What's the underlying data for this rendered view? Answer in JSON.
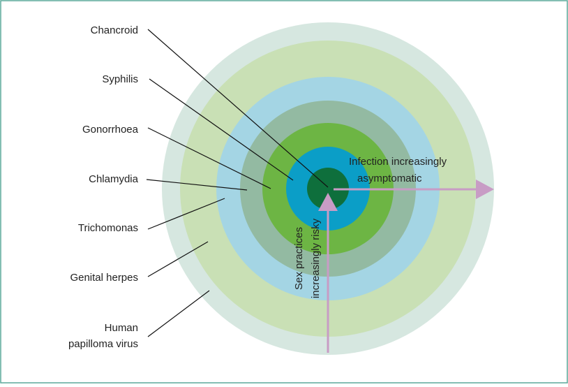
{
  "labels": [
    {
      "lines": [
        "Chancroid"
      ]
    },
    {
      "lines": [
        "Syphilis"
      ]
    },
    {
      "lines": [
        "Gonorrhoea"
      ]
    },
    {
      "lines": [
        "Chlamydia"
      ]
    },
    {
      "lines": [
        "Trichomonas"
      ]
    },
    {
      "lines": [
        "Genital herpes"
      ]
    },
    {
      "lines": [
        "Human",
        "papilloma virus"
      ]
    }
  ],
  "horizontal_arrow": {
    "lines": [
      "Infection increasingly",
      "asymptomatic"
    ]
  },
  "vertical_arrow": {
    "lines": [
      "Sex practices",
      "increasingly risky"
    ]
  }
}
